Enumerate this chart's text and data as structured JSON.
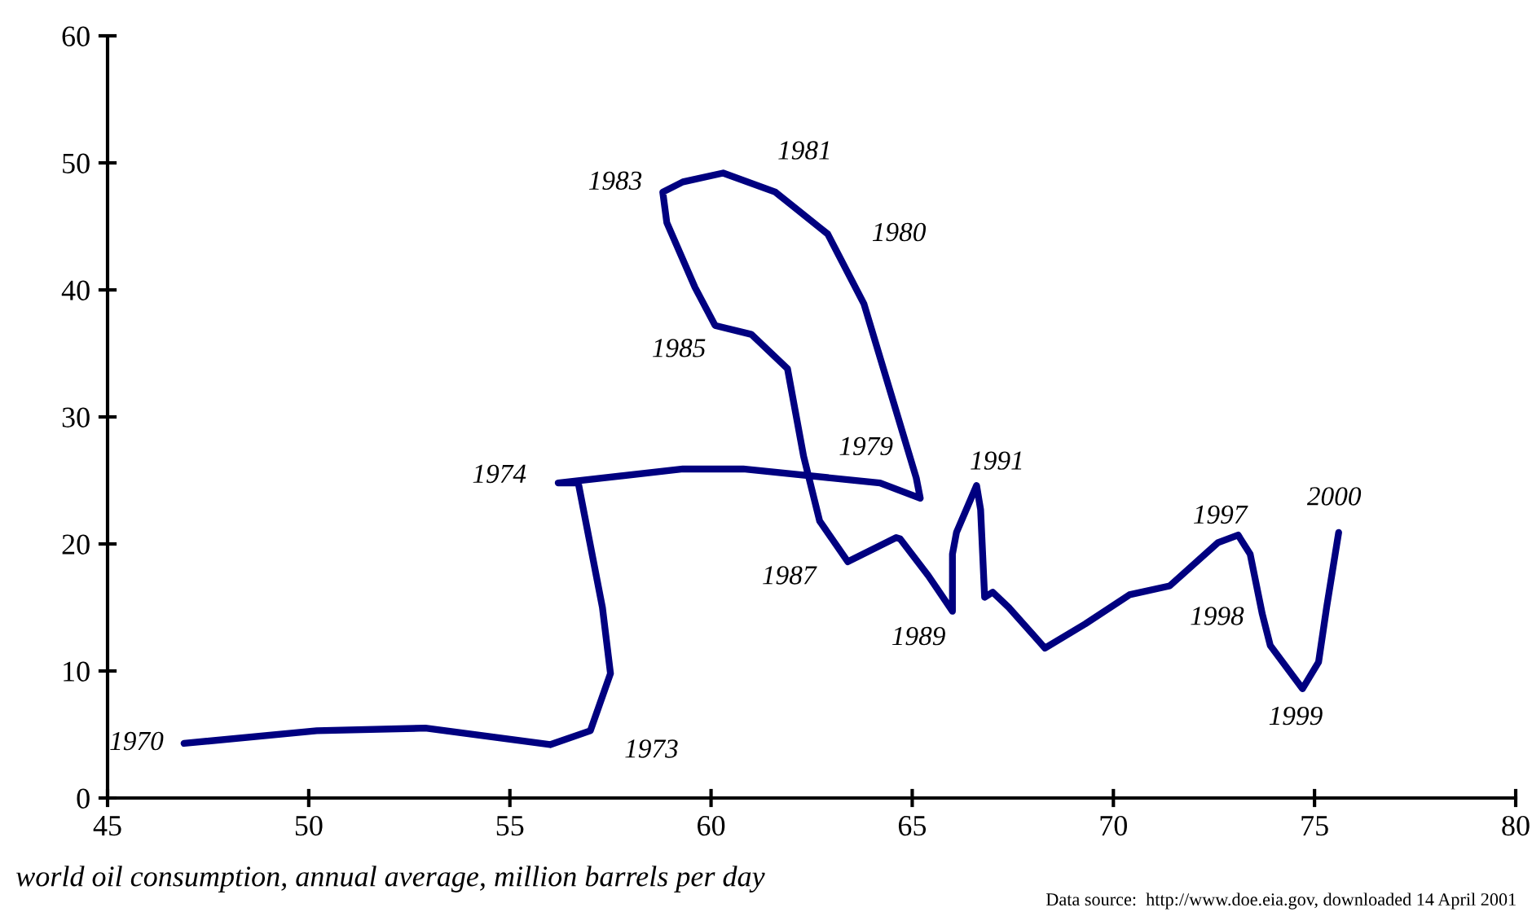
{
  "chart_data": {
    "type": "line",
    "xlabel": "world oil consumption, annual average, million barrels per day",
    "series": [
      {
        "color": "#000080",
        "x": [
          46.9,
          50.2,
          52.9,
          56.0,
          57.0,
          57.5,
          57.3,
          56.7,
          56.2,
          59.3,
          60.8,
          64.2,
          65.2,
          65.1,
          63.8,
          62.9,
          62.7,
          61.6,
          60.3,
          59.3,
          58.8,
          58.9,
          59.6,
          60.1,
          61.0,
          61.9,
          62.3,
          62.7,
          63.4,
          64.6,
          64.7,
          65.4,
          66.0,
          66.0,
          66.1,
          66.6,
          66.7,
          66.8,
          67.0,
          67.4,
          68.3,
          69.3,
          70.4,
          71.4,
          72.6,
          73.1,
          73.4,
          73.7,
          73.9,
          74.7,
          75.1,
          75.3,
          75.6
        ],
        "values": [
          4.3,
          5.3,
          5.5,
          4.2,
          5.3,
          9.8,
          15.0,
          24.8,
          24.8,
          25.9,
          25.9,
          24.8,
          23.6,
          25.2,
          38.9,
          44.4,
          44.9,
          47.7,
          49.2,
          48.5,
          47.7,
          45.3,
          40.2,
          37.2,
          36.5,
          33.8,
          26.9,
          21.8,
          18.6,
          20.5,
          20.4,
          17.5,
          14.7,
          19.2,
          20.9,
          24.6,
          22.7,
          15.8,
          16.2,
          15.0,
          11.8,
          13.7,
          16.0,
          16.7,
          20.1,
          20.7,
          19.2,
          14.5,
          12.0,
          8.6,
          10.7,
          15.0,
          20.9
        ]
      }
    ],
    "xlim": [
      45,
      80
    ],
    "ylim": [
      0,
      60
    ],
    "xticks": [
      45,
      50,
      55,
      60,
      65,
      70,
      75,
      80
    ],
    "yticks": [
      0,
      10,
      20,
      30,
      40,
      50,
      60
    ],
    "grid": false,
    "legend": false,
    "marker": "none",
    "line_style": "solid",
    "annotations": [
      {
        "text": "1970",
        "x": 46.9,
        "y": 4.3
      },
      {
        "text": "1973",
        "x": 57.0,
        "y": 5.3
      },
      {
        "text": "1974",
        "x": 56.2,
        "y": 24.8
      },
      {
        "text": "1983",
        "x": 58.8,
        "y": 47.7
      },
      {
        "text": "1981",
        "x": 60.3,
        "y": 49.2
      },
      {
        "text": "1980",
        "x": 62.7,
        "y": 44.9
      },
      {
        "text": "1985",
        "x": 60.1,
        "y": 37.2
      },
      {
        "text": "1979",
        "x": 65.2,
        "y": 23.6
      },
      {
        "text": "1987",
        "x": 63.4,
        "y": 18.6
      },
      {
        "text": "1989",
        "x": 66.0,
        "y": 14.7
      },
      {
        "text": "1991",
        "x": 66.6,
        "y": 24.6
      },
      {
        "text": "1997",
        "x": 73.1,
        "y": 20.7
      },
      {
        "text": "1998",
        "x": 73.7,
        "y": 14.5
      },
      {
        "text": "1999",
        "x": 74.7,
        "y": 8.6
      },
      {
        "text": "2000",
        "x": 75.6,
        "y": 20.9
      },
      "Data source:  http://www.doe.eia.gov, downloaded 14 April 2001"
    ]
  }
}
